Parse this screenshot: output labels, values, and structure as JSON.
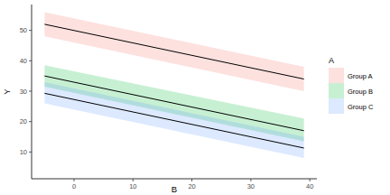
{
  "chart_data": {
    "type": "line",
    "x_label": "B",
    "y_label": "Y",
    "legend_title": "A",
    "legend": "right",
    "grid": false,
    "x": [
      -5,
      39
    ],
    "series": [
      {
        "name": "Group A",
        "color": "#F8766D",
        "values": [
          52,
          34
        ],
        "upper": [
          56,
          38
        ],
        "lower": [
          48,
          30
        ]
      },
      {
        "name": "Group B",
        "color": "#00BA38",
        "values": [
          35,
          17
        ],
        "upper": [
          38.5,
          21
        ],
        "lower": [
          31.5,
          13.5
        ]
      },
      {
        "name": "Group C",
        "color": "#619CFF",
        "values": [
          29.3,
          11.3
        ],
        "upper": [
          33,
          15
        ],
        "lower": [
          26,
          8
        ]
      }
    ],
    "xlim": [
      -7.2,
      41.2
    ],
    "xticks": [
      0,
      10,
      20,
      30,
      40
    ],
    "ylim": [
      1.2,
      58.5
    ],
    "yticks": [
      10,
      20,
      30,
      40,
      50
    ]
  }
}
